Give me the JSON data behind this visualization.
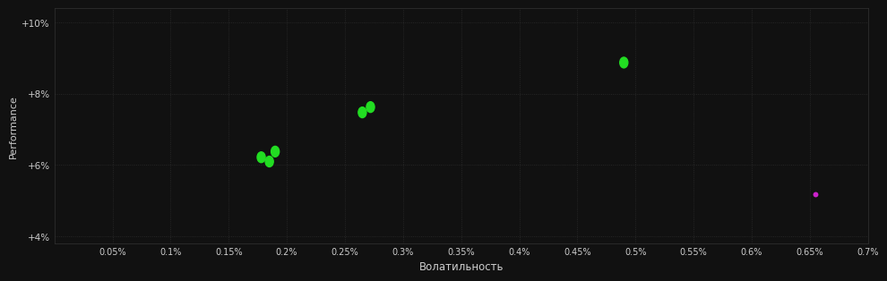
{
  "xlabel": "Волатильность",
  "ylabel": "Performance",
  "background_color": "#111111",
  "grid_color": "#2d2d2d",
  "text_color": "#cccccc",
  "xlim": [
    0.0,
    0.007
  ],
  "ylim": [
    0.038,
    0.104
  ],
  "yticks": [
    0.04,
    0.06,
    0.08,
    0.1
  ],
  "ytick_labels": [
    "+4%",
    "+6%",
    "+8%",
    "+10%"
  ],
  "xticks": [
    0.0005,
    0.001,
    0.0015,
    0.002,
    0.0025,
    0.003,
    0.0035,
    0.004,
    0.0045,
    0.005,
    0.0055,
    0.006,
    0.0065,
    0.007
  ],
  "xtick_labels": [
    "0.05%",
    "0.1%",
    "0.15%",
    "0.2%",
    "0.25%",
    "0.3%",
    "0.35%",
    "0.4%",
    "0.45%",
    "0.5%",
    "0.55%",
    "0.6%",
    "0.65%",
    "0.7%"
  ],
  "green_points": [
    [
      0.00178,
      0.0622
    ],
    [
      0.00185,
      0.061
    ],
    [
      0.0019,
      0.0638
    ],
    [
      0.00265,
      0.0748
    ],
    [
      0.00272,
      0.0763
    ],
    [
      0.0049,
      0.0888
    ]
  ],
  "magenta_points": [
    [
      0.00655,
      0.0518
    ]
  ],
  "green_color": "#22dd22",
  "magenta_color": "#cc22cc",
  "marker_size_green": 28,
  "marker_size_magenta": 18
}
